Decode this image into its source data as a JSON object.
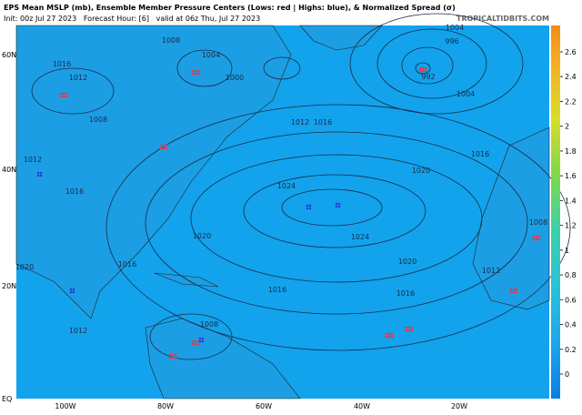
{
  "header": {
    "title": "EPS Mean MSLP (mb), Ensemble Member Pressure Centers (Lows: red | Highs: blue), & Normalized Spread (σ)",
    "subtitle": "Init: 00z Jul 27 2023   Forecast Hour: [6]   valid at 06z Thu, Jul 27 2023",
    "site": "TROPICALTIDBITS.COM"
  },
  "colorbar": {
    "ticks": [
      0,
      0.2,
      0.4,
      0.6,
      0.8,
      1,
      1.2,
      1.4,
      1.6,
      1.8,
      2,
      2.2,
      2.4,
      2.6
    ]
  },
  "latitude_labels": [
    "60N",
    "40N",
    "20N",
    "EQ"
  ],
  "longitude_labels": [
    "100W",
    "80W",
    "60W",
    "40W",
    "20W"
  ],
  "isobar_labels": [
    "1008",
    "1004",
    "1000",
    "1016",
    "1012",
    "1008",
    "1012",
    "1016",
    "1016",
    "1012",
    "1008",
    "1020",
    "1024",
    "1024",
    "1020",
    "1020",
    "1016",
    "1016",
    "1016",
    "1012",
    "1004",
    "996",
    "992",
    "1004",
    "1016",
    "1008",
    "1012",
    "1020"
  ]
}
